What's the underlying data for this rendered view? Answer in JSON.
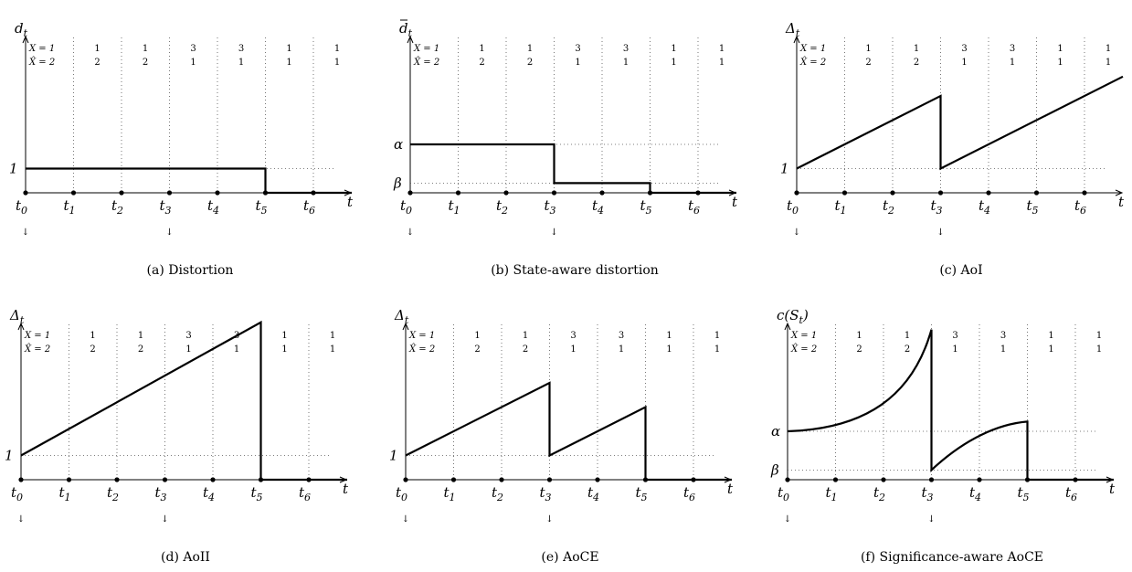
{
  "panels": [
    {
      "id": "a",
      "caption": "(a) Distortion",
      "ylabel": "d",
      "ylabel_sub": "t",
      "ylabel_bar": false,
      "ylabel_paren": false,
      "y_ticks": [
        {
          "label": "1",
          "level": 1
        }
      ],
      "curve": "distortion"
    },
    {
      "id": "b",
      "caption": "(b) State-aware distortion",
      "ylabel": "d",
      "ylabel_sub": "t",
      "ylabel_bar": true,
      "ylabel_paren": false,
      "y_ticks": [
        {
          "label": "α",
          "level": 2
        },
        {
          "label": "β",
          "level": 0.4
        }
      ],
      "curve": "state_distortion"
    },
    {
      "id": "c",
      "caption": "(c) AoI",
      "ylabel": "Δ",
      "ylabel_sub": "t",
      "ylabel_bar": false,
      "ylabel_paren": false,
      "y_ticks": [
        {
          "label": "1",
          "level": 1
        }
      ],
      "curve": "aoi"
    },
    {
      "id": "d",
      "caption": "(d) AoII",
      "ylabel": "Δ",
      "ylabel_sub": "t",
      "ylabel_bar": false,
      "ylabel_paren": false,
      "y_ticks": [
        {
          "label": "1",
          "level": 1
        }
      ],
      "curve": "aoii"
    },
    {
      "id": "e",
      "caption": "(e) AoCE",
      "ylabel": "Δ",
      "ylabel_sub": "t",
      "ylabel_bar": false,
      "ylabel_paren": false,
      "y_ticks": [
        {
          "label": "1",
          "level": 1
        }
      ],
      "curve": "aoce"
    },
    {
      "id": "f",
      "caption": "(f) Significance-aware AoCE",
      "ylabel": "c(S",
      "ylabel_sub": "t",
      "ylabel_bar": false,
      "ylabel_paren": true,
      "y_ticks": [
        {
          "label": "α",
          "level": 2
        },
        {
          "label": "β",
          "level": 0.4
        }
      ],
      "curve": "sig_aoce"
    }
  ],
  "x_ticks": [
    "0",
    "1",
    "2",
    "3",
    "4",
    "5",
    "6"
  ],
  "x_tick_prefix": "t",
  "x_axis_label": "t",
  "arrow_marks": [
    0,
    3
  ],
  "states": {
    "row_labels": [
      "X = 1",
      "X̂ = 2"
    ],
    "x_values": [
      "1",
      "1",
      "3",
      "3",
      "1",
      "1"
    ],
    "xhat_values": [
      "2",
      "2",
      "1",
      "1",
      "1",
      "1"
    ]
  },
  "arrow_glyph": "↓"
}
